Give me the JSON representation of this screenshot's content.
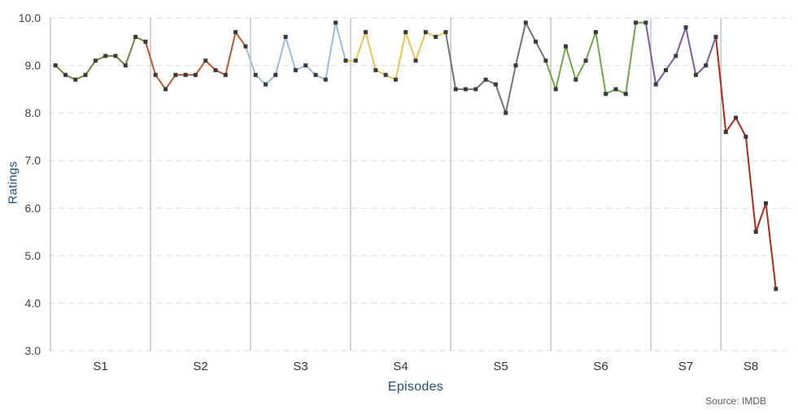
{
  "chart_data": {
    "type": "line",
    "title": "",
    "xlabel": "Episodes",
    "ylabel": "Ratings",
    "source": "Source: IMDB",
    "ylim": [
      3.0,
      10.0
    ],
    "ytick_step": 1.0,
    "ytick_labels": [
      "3.0",
      "4.0",
      "5.0",
      "6.0",
      "7.0",
      "8.0",
      "9.0",
      "10.0"
    ],
    "grid": "horizontal-dashed",
    "legend": false,
    "marker": "square",
    "marker_color": "#3a3a3a",
    "grid_color": "#d9d9d9",
    "separator_color": "#a9a9a9",
    "axis_label_color": "#1f4e79",
    "tick_label_color": "#404040",
    "season_label_color": "#333333",
    "source_color": "#595959",
    "series": [
      {
        "name": "S1",
        "color": "#75823c",
        "values": [
          9.0,
          8.8,
          8.7,
          8.8,
          9.1,
          9.2,
          9.2,
          9.0,
          9.6,
          9.5
        ]
      },
      {
        "name": "S2",
        "color": "#c0562c",
        "values": [
          8.8,
          8.5,
          8.8,
          8.8,
          8.8,
          9.1,
          8.9,
          8.8,
          9.7,
          9.4
        ]
      },
      {
        "name": "S3",
        "color": "#9db9de",
        "values": [
          8.8,
          8.6,
          8.8,
          9.6,
          8.9,
          9.0,
          8.8,
          8.7,
          9.9,
          9.1
        ]
      },
      {
        "name": "S4",
        "color": "#e9c351",
        "values": [
          9.1,
          9.7,
          8.9,
          8.8,
          8.7,
          9.7,
          9.1,
          9.7,
          9.6,
          9.7
        ]
      },
      {
        "name": "S5",
        "color": "#747474",
        "values": [
          8.5,
          8.5,
          8.5,
          8.7,
          8.6,
          8.0,
          9.0,
          9.9,
          9.5,
          9.1
        ]
      },
      {
        "name": "S6",
        "color": "#6da84c",
        "values": [
          8.5,
          9.4,
          8.7,
          9.1,
          9.7,
          8.4,
          8.5,
          8.4,
          9.9,
          9.9
        ]
      },
      {
        "name": "S7",
        "color": "#7a5ba6",
        "values": [
          8.6,
          8.9,
          9.2,
          9.8,
          8.8,
          9.0,
          9.6
        ]
      },
      {
        "name": "S8",
        "color": "#b1291b",
        "values": [
          7.6,
          7.9,
          7.5,
          5.5,
          6.1,
          4.3
        ]
      }
    ]
  }
}
